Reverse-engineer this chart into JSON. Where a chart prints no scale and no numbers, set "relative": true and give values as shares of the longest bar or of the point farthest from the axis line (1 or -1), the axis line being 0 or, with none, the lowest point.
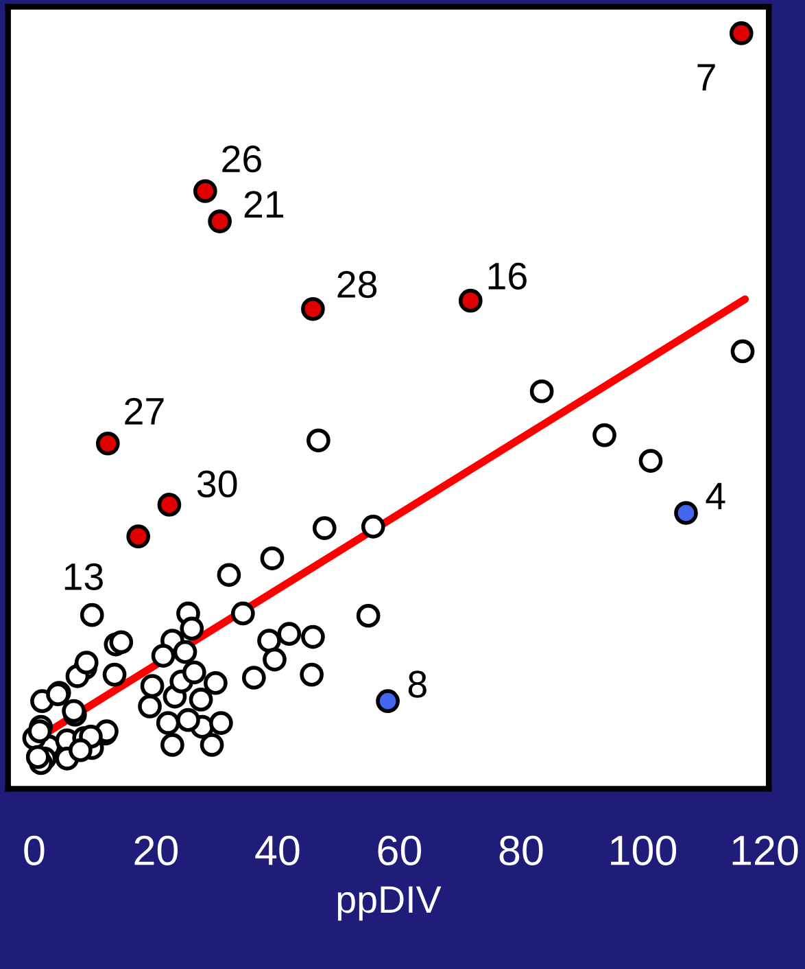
{
  "chart_data": {
    "type": "scatter",
    "xlabel": "ppDIV",
    "relative": true,
    "xlim": [
      -4.3,
      120.7
    ],
    "xticks": [
      0,
      20,
      40,
      60,
      80,
      100,
      120
    ],
    "grid": false,
    "marker": "circle",
    "series": [
      {
        "color": "#ffffff",
        "x": [
          116.4,
          83.4,
          93.7,
          101.3,
          46.7,
          47.7,
          55.7,
          39.1,
          32.0,
          34.3,
          25.3,
          9.5,
          38.6,
          41.9,
          45.8,
          54.9,
          39.5,
          45.6,
          36.1,
          13.4,
          14.3,
          8.4,
          7.1,
          13.2,
          1.3,
          4.1,
          1.1,
          2.4,
          0,
          1.7,
          1.1,
          5.4,
          8.2,
          9.5,
          11.7,
          6.7,
          8.6,
          3.9,
          6.5,
          11.9,
          9.3,
          0.9,
          0.6,
          5.4,
          7.6,
          19.4,
          19.0,
          22.0,
          22.7,
          23.1,
          24.2,
          26.3,
          25.9,
          22.7,
          21.2,
          24.8,
          27.4,
          27.6,
          29.8,
          30.7,
          29.2,
          25.3
        ],
        "values": [
          0.579,
          0.526,
          0.468,
          0.434,
          0.461,
          0.345,
          0.347,
          0.305,
          0.283,
          0.232,
          0.232,
          0.23,
          0.196,
          0.205,
          0.201,
          0.229,
          0.171,
          0.151,
          0.147,
          0.191,
          0.194,
          0.16,
          0.149,
          0.151,
          0.116,
          0.127,
          0.082,
          0.056,
          0.067,
          0.04,
          0.034,
          0.064,
          0.067,
          0.054,
          0.073,
          0.098,
          0.167,
          0.125,
          0.103,
          0.076,
          0.069,
          0.076,
          0.042,
          0.04,
          0.051,
          0.136,
          0.109,
          0.087,
          0.058,
          0.122,
          0.142,
          0.154,
          0.212,
          0.196,
          0.176,
          0.181,
          0.118,
          0.082,
          0.14,
          0.087,
          0.058,
          0.091
        ]
      },
      {
        "color": "#e00000",
        "x": [
          116.2,
          28.1,
          30.5,
          45.8,
          71.7,
          12.1,
          22.2,
          17.1
        ],
        "values": [
          1.0,
          0.791,
          0.751,
          0.635,
          0.646,
          0.457,
          0.376,
          0.334
        ]
      },
      {
        "color": "#4466ee",
        "x": [
          107.1,
          58.1
        ],
        "values": [
          0.365,
          0.116
        ]
      },
      {
        "type": "line",
        "color": "#ff0000",
        "marker": "none",
        "line_style": "solid",
        "x": [
          0,
          116.8
        ],
        "values": [
          0.064,
          0.648
        ]
      }
    ],
    "annotations": [
      {
        "text": "7",
        "x": 116.2,
        "y": 1.0
      },
      {
        "text": "26",
        "x": 28.1,
        "y": 0.791
      },
      {
        "text": "21",
        "x": 30.5,
        "y": 0.751
      },
      {
        "text": "28",
        "x": 45.8,
        "y": 0.635
      },
      {
        "text": "16",
        "x": 71.7,
        "y": 0.646
      },
      {
        "text": "27",
        "x": 12.1,
        "y": 0.457
      },
      {
        "text": "30",
        "x": 22.2,
        "y": 0.376
      },
      {
        "text": "13",
        "x": 17.1,
        "y": 0.334
      },
      {
        "text": "4",
        "x": 107.1,
        "y": 0.365
      },
      {
        "text": "8",
        "x": 58.1,
        "y": 0.116
      }
    ]
  }
}
